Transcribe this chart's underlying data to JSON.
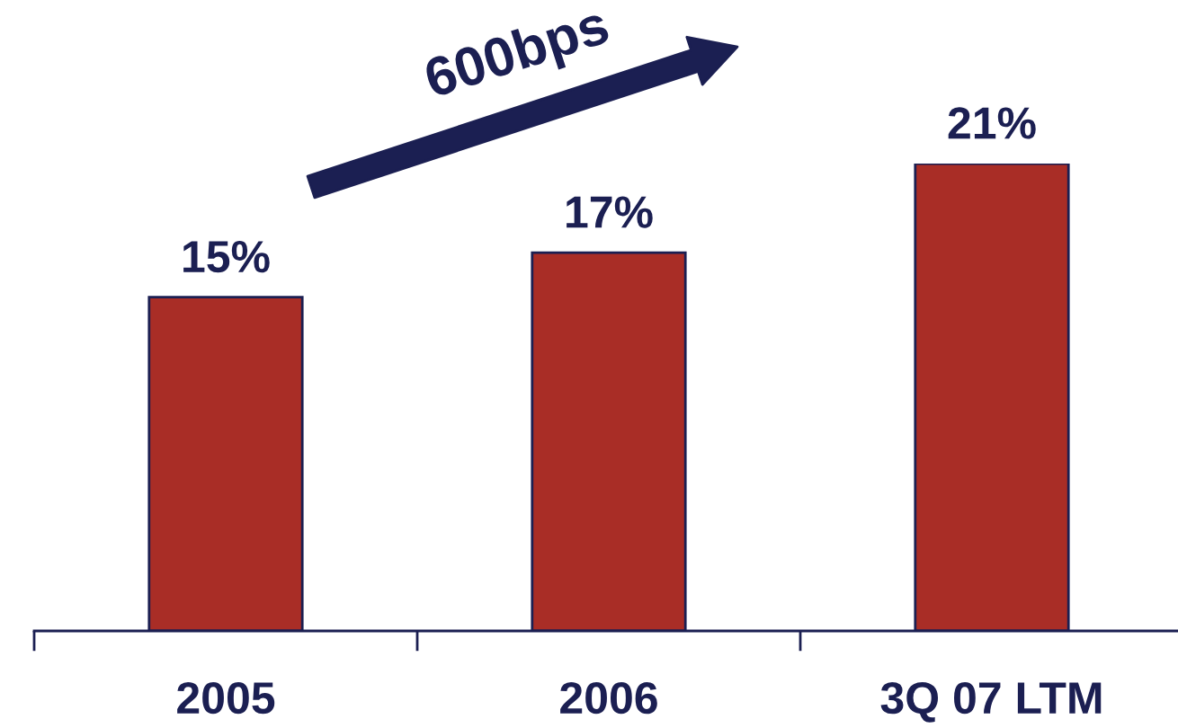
{
  "chart_data": {
    "type": "bar",
    "categories": [
      "2005",
      "2006",
      "3Q 07 LTM"
    ],
    "values": [
      15,
      17,
      21
    ],
    "color": "#a92d26",
    "value_labels": [
      "15%",
      "17%",
      "21%"
    ],
    "tick_labels": "x",
    "annotations": [
      "600bps"
    ]
  }
}
